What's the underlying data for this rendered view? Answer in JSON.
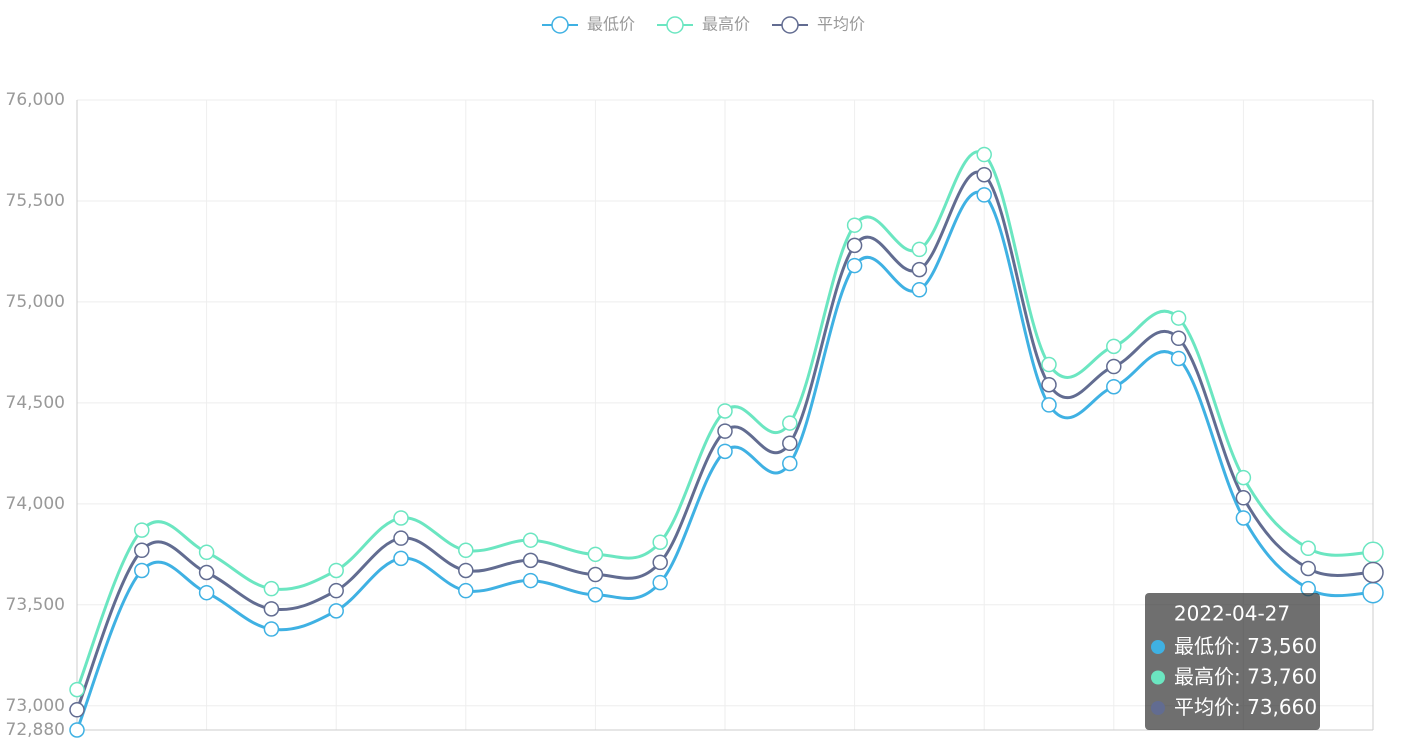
{
  "chart_data": {
    "type": "line",
    "categories": [
      null,
      null,
      null,
      null,
      null,
      null,
      null,
      null,
      null,
      null,
      null,
      null,
      null,
      null,
      null,
      null,
      null,
      null,
      null,
      null,
      "2022-04-27"
    ],
    "series": [
      {
        "name": "最低价",
        "color": "#3fb1e3",
        "values": [
          72880,
          73670,
          73560,
          73380,
          73470,
          73730,
          73570,
          73620,
          73550,
          73610,
          74260,
          74200,
          75180,
          75060,
          75530,
          74490,
          74580,
          74720,
          73930,
          73580,
          73560
        ],
        "value_labels": [
          null,
          null,
          null,
          null,
          null,
          null,
          null,
          null,
          null,
          null,
          null,
          null,
          null,
          null,
          null,
          null,
          null,
          null,
          null,
          null,
          "73,560"
        ]
      },
      {
        "name": "最高价",
        "color": "#6be6c1",
        "values": [
          73080,
          73870,
          73760,
          73580,
          73670,
          73930,
          73770,
          73820,
          73750,
          73810,
          74460,
          74400,
          75380,
          75260,
          75730,
          74690,
          74780,
          74920,
          74130,
          73780,
          73760
        ],
        "value_labels": [
          null,
          null,
          null,
          null,
          null,
          null,
          null,
          null,
          null,
          null,
          null,
          null,
          null,
          null,
          null,
          null,
          null,
          null,
          null,
          null,
          "73,760"
        ]
      },
      {
        "name": "平均价",
        "color": "#626c91",
        "values": [
          72980,
          73770,
          73660,
          73480,
          73570,
          73830,
          73670,
          73720,
          73650,
          73710,
          74360,
          74300,
          75280,
          75160,
          75630,
          74590,
          74680,
          74820,
          74030,
          73680,
          73660
        ],
        "value_labels": [
          null,
          null,
          null,
          null,
          null,
          null,
          null,
          null,
          null,
          null,
          null,
          null,
          null,
          null,
          null,
          null,
          null,
          null,
          null,
          null,
          "73,660"
        ]
      }
    ],
    "ylim": [
      72880,
      76000
    ],
    "yticks": [
      {
        "value": 72880,
        "label": "72,880"
      },
      {
        "value": 73000,
        "label": "73,000"
      },
      {
        "value": 73500,
        "label": "73,500"
      },
      {
        "value": 74000,
        "label": "74,000"
      },
      {
        "value": 74500,
        "label": "74,500"
      },
      {
        "value": 75000,
        "label": "75,000"
      },
      {
        "value": 75500,
        "label": "75,500"
      },
      {
        "value": 76000,
        "label": "76,000"
      }
    ],
    "grid": true,
    "smooth": true,
    "legend": "top"
  }
}
